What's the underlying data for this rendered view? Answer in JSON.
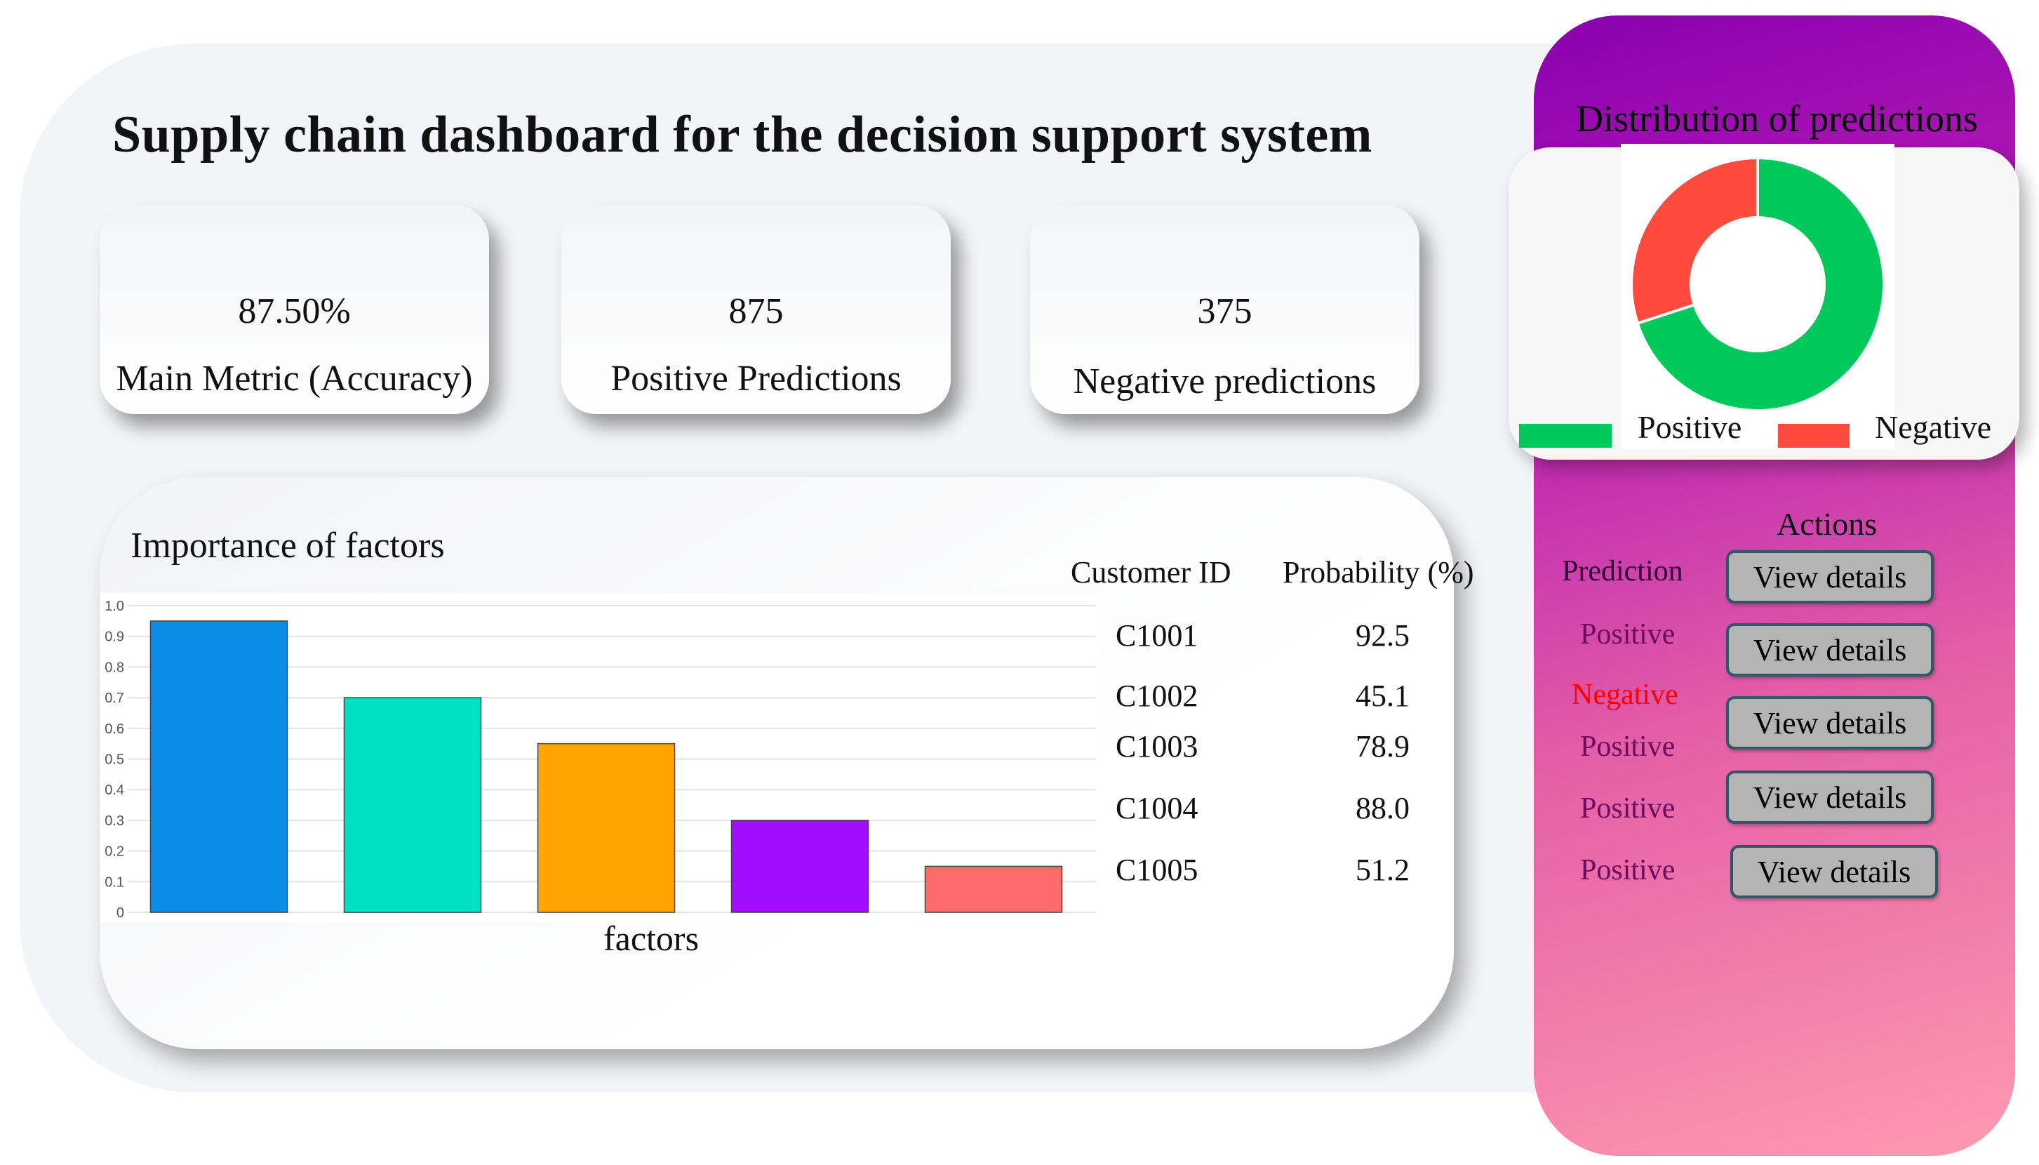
{
  "title": "Supply chain dashboard for the decision support system",
  "metrics": [
    {
      "value": "87.50%",
      "label": "Main Metric (Accuracy)"
    },
    {
      "value": "875",
      "label": "Positive Predictions"
    },
    {
      "value": "375",
      "label": "Negative predictions"
    }
  ],
  "factors": {
    "title": "Importance of factors",
    "xlabel": "factors"
  },
  "chart_data": {
    "type": "bar",
    "title": "Importance of factors",
    "xlabel": "factors",
    "ylabel": "",
    "categories": [
      "",
      "",
      "",
      "",
      ""
    ],
    "values": [
      0.95,
      0.7,
      0.55,
      0.3,
      0.15
    ],
    "colors": [
      "#0a8de6",
      "#00e0c4",
      "#ffa500",
      "#a30dff",
      "#ff6b6b"
    ],
    "ylim": [
      0,
      1.0
    ],
    "yticks": [
      "0",
      "0.1",
      "0.2",
      "0.3",
      "0.4",
      "0.5",
      "0.6",
      "0.7",
      "0.8",
      "0.9",
      "1.0"
    ],
    "grid": true
  },
  "table": {
    "headers": [
      "Customer ID",
      "Probability (%)"
    ],
    "rows": [
      {
        "id": "C1001",
        "prob": "92.5"
      },
      {
        "id": "C1002",
        "prob": "45.1"
      },
      {
        "id": "C1003",
        "prob": "78.9"
      },
      {
        "id": "C1004",
        "prob": "88.0"
      },
      {
        "id": "C1005",
        "prob": "51.2"
      }
    ]
  },
  "distribution": {
    "title": "Distribution of predictions",
    "positive_label": "Positive",
    "negative_label": "Negative",
    "positive_value": 875,
    "negative_value": 375,
    "positive_color": "#00c85a",
    "negative_color": "#ff4a3d"
  },
  "actions": {
    "header": "Actions",
    "prediction_header": "Prediction",
    "predictions": [
      "Positive",
      "Negative",
      "Positive",
      "Positive",
      "Positive"
    ],
    "button_label": "View details"
  }
}
